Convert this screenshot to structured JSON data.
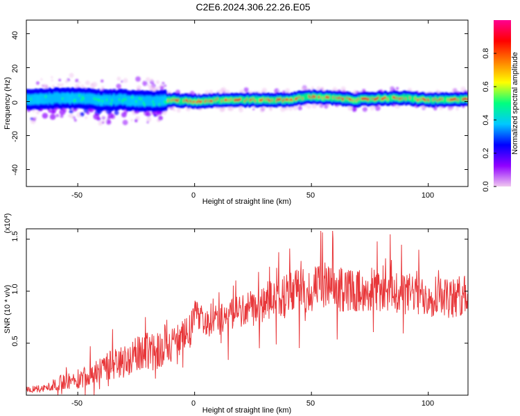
{
  "title": "C2E6.2024.306.22.26.E05",
  "chart_data": [
    {
      "type": "heatmap",
      "xlabel": "Height of straight line (km)",
      "ylabel": "Frequency (Hz)",
      "xlim": [
        -72,
        117
      ],
      "ylim": [
        -50,
        48
      ],
      "xticks": [
        "-50",
        "0",
        "50",
        "100"
      ],
      "yticks": [
        "-40",
        "-20",
        "0",
        "20",
        "40"
      ],
      "colorbar": {
        "label": "Normalized spectral amplitude",
        "range": [
          0,
          1
        ],
        "ticks": [
          "0.0",
          "0.2",
          "0.4",
          "0.6",
          "0.8"
        ],
        "stops": [
          "#f0c8f0",
          "#9000ff",
          "#0000ff",
          "#00c8ff",
          "#00ff80",
          "#ffff00",
          "#ff8000",
          "#ff0000",
          "#ff0090"
        ]
      },
      "ridge": {
        "x": [
          -70,
          -60,
          -50,
          -40,
          -30,
          -20,
          -10,
          0,
          10,
          20,
          30,
          40,
          50,
          60,
          70,
          80,
          90,
          100,
          110,
          117
        ],
        "center_hz": [
          1,
          2,
          2,
          1,
          1,
          0,
          1,
          0,
          1,
          1,
          1,
          1,
          3,
          2,
          1,
          2,
          2,
          1,
          1,
          2
        ]
      }
    },
    {
      "type": "line",
      "xlabel": "Height of straight line (km)",
      "ylabel": "SNR (10 * v/v)",
      "multiplier": "(x10^4)",
      "color": "#e8373a",
      "xlim": [
        -72,
        117
      ],
      "ylim": [
        0,
        1.6
      ],
      "xticks": [
        "-50",
        "0",
        "50",
        "100"
      ],
      "yticks": [
        "0.5",
        "1.0",
        "1.5"
      ],
      "series": [
        {
          "x": [
            -72,
            -65,
            -60,
            -55,
            -50,
            -45,
            -40,
            -35,
            -30,
            -25,
            -20,
            -15,
            -12,
            -10,
            -5,
            -2,
            0,
            5,
            10,
            15,
            20,
            25,
            30,
            35,
            40,
            45,
            50,
            55,
            60,
            65,
            70,
            75,
            80,
            85,
            90,
            95,
            100,
            105,
            110,
            117
          ],
          "y": [
            0.06,
            0.06,
            0.1,
            0.14,
            0.13,
            0.22,
            0.24,
            0.3,
            0.33,
            0.38,
            0.45,
            0.42,
            0.55,
            0.48,
            0.55,
            0.6,
            0.8,
            0.7,
            0.72,
            0.78,
            0.82,
            0.85,
            0.9,
            0.92,
            0.98,
            1.02,
            1.0,
            1.06,
            1.0,
            1.02,
            1.0,
            1.03,
            0.98,
            1.02,
            0.97,
            1.0,
            0.95,
            0.98,
            0.92,
            0.98
          ],
          "amp": [
            0.03,
            0.04,
            0.06,
            0.08,
            0.08,
            0.12,
            0.13,
            0.15,
            0.16,
            0.18,
            0.2,
            0.2,
            0.2,
            0.18,
            0.18,
            0.18,
            0.12,
            0.15,
            0.16,
            0.16,
            0.17,
            0.18,
            0.19,
            0.2,
            0.2,
            0.22,
            0.22,
            0.24,
            0.22,
            0.22,
            0.2,
            0.22,
            0.2,
            0.22,
            0.2,
            0.2,
            0.2,
            0.22,
            0.2,
            0.2
          ]
        }
      ]
    }
  ]
}
